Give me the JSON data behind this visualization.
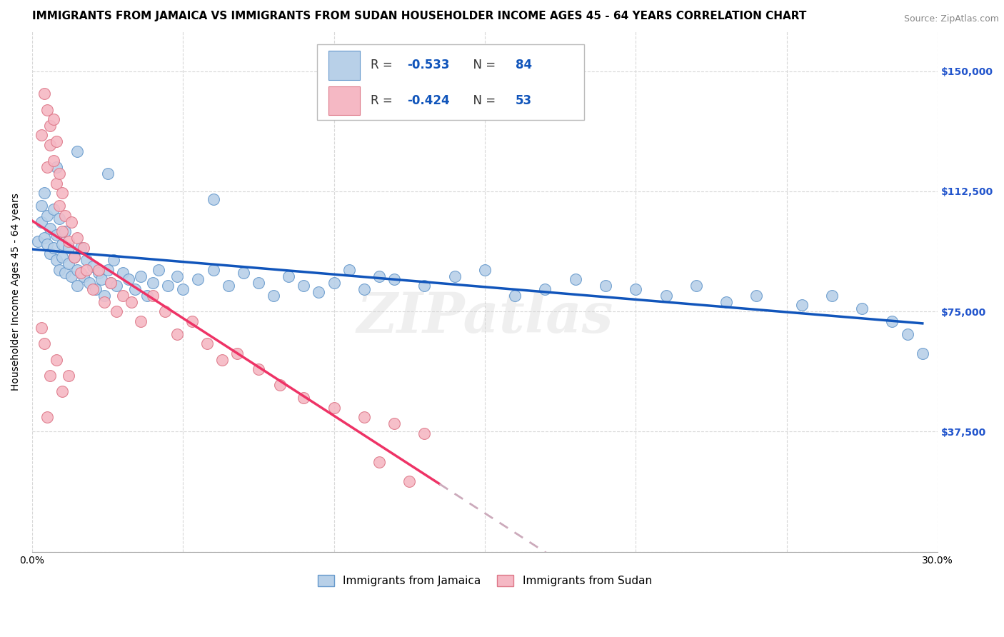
{
  "title": "IMMIGRANTS FROM JAMAICA VS IMMIGRANTS FROM SUDAN HOUSEHOLDER INCOME AGES 45 - 64 YEARS CORRELATION CHART",
  "source": "Source: ZipAtlas.com",
  "ylabel": "Householder Income Ages 45 - 64 years",
  "xlim": [
    0.0,
    0.3
  ],
  "ylim": [
    0,
    162500
  ],
  "yticks": [
    0,
    37500,
    75000,
    112500,
    150000
  ],
  "ytick_labels": [
    "",
    "$37,500",
    "$75,000",
    "$112,500",
    "$150,000"
  ],
  "xtick_positions": [
    0.0,
    0.05,
    0.1,
    0.15,
    0.2,
    0.25,
    0.3
  ],
  "xtick_labels": [
    "0.0%",
    "",
    "",
    "",
    "",
    "",
    "30.0%"
  ],
  "background_color": "#ffffff",
  "grid_color": "#d8d8d8",
  "jamaica_fill": "#b8d0e8",
  "jamaica_edge": "#6699cc",
  "sudan_fill": "#f5b8c4",
  "sudan_edge": "#dd7788",
  "trend_jamaica_color": "#1155bb",
  "trend_sudan_solid_color": "#ee3366",
  "trend_sudan_dash_color": "#ccaabb",
  "watermark": "ZIPatlas",
  "jamaica_x": [
    0.002,
    0.003,
    0.003,
    0.004,
    0.004,
    0.005,
    0.005,
    0.006,
    0.006,
    0.007,
    0.007,
    0.008,
    0.008,
    0.009,
    0.009,
    0.01,
    0.01,
    0.011,
    0.011,
    0.012,
    0.012,
    0.013,
    0.014,
    0.015,
    0.015,
    0.016,
    0.017,
    0.018,
    0.019,
    0.02,
    0.021,
    0.022,
    0.023,
    0.024,
    0.025,
    0.026,
    0.027,
    0.028,
    0.03,
    0.032,
    0.034,
    0.036,
    0.038,
    0.04,
    0.042,
    0.045,
    0.048,
    0.05,
    0.055,
    0.06,
    0.065,
    0.07,
    0.075,
    0.08,
    0.085,
    0.09,
    0.095,
    0.1,
    0.105,
    0.11,
    0.115,
    0.12,
    0.13,
    0.14,
    0.15,
    0.16,
    0.17,
    0.18,
    0.19,
    0.2,
    0.21,
    0.22,
    0.23,
    0.24,
    0.255,
    0.265,
    0.275,
    0.285,
    0.29,
    0.295,
    0.008,
    0.015,
    0.025,
    0.06
  ],
  "jamaica_y": [
    97000,
    108000,
    103000,
    112000,
    98000,
    105000,
    96000,
    101000,
    93000,
    107000,
    95000,
    99000,
    91000,
    104000,
    88000,
    96000,
    92000,
    100000,
    87000,
    95000,
    90000,
    86000,
    92000,
    88000,
    83000,
    95000,
    86000,
    91000,
    84000,
    89000,
    82000,
    87000,
    85000,
    80000,
    88000,
    84000,
    91000,
    83000,
    87000,
    85000,
    82000,
    86000,
    80000,
    84000,
    88000,
    83000,
    86000,
    82000,
    85000,
    88000,
    83000,
    87000,
    84000,
    80000,
    86000,
    83000,
    81000,
    84000,
    88000,
    82000,
    86000,
    85000,
    83000,
    86000,
    88000,
    80000,
    82000,
    85000,
    83000,
    82000,
    80000,
    83000,
    78000,
    80000,
    77000,
    80000,
    76000,
    72000,
    68000,
    62000,
    120000,
    125000,
    118000,
    110000
  ],
  "sudan_x": [
    0.003,
    0.004,
    0.005,
    0.005,
    0.006,
    0.006,
    0.007,
    0.007,
    0.008,
    0.008,
    0.009,
    0.009,
    0.01,
    0.01,
    0.011,
    0.012,
    0.013,
    0.014,
    0.015,
    0.016,
    0.017,
    0.018,
    0.02,
    0.022,
    0.024,
    0.026,
    0.028,
    0.03,
    0.033,
    0.036,
    0.04,
    0.044,
    0.048,
    0.053,
    0.058,
    0.063,
    0.068,
    0.075,
    0.082,
    0.09,
    0.1,
    0.11,
    0.12,
    0.13,
    0.003,
    0.004,
    0.006,
    0.008,
    0.01,
    0.012,
    0.115,
    0.125,
    0.005
  ],
  "sudan_y": [
    130000,
    143000,
    120000,
    138000,
    127000,
    133000,
    122000,
    135000,
    115000,
    128000,
    108000,
    118000,
    100000,
    112000,
    105000,
    97000,
    103000,
    92000,
    98000,
    87000,
    95000,
    88000,
    82000,
    88000,
    78000,
    84000,
    75000,
    80000,
    78000,
    72000,
    80000,
    75000,
    68000,
    72000,
    65000,
    60000,
    62000,
    57000,
    52000,
    48000,
    45000,
    42000,
    40000,
    37000,
    70000,
    65000,
    55000,
    60000,
    50000,
    55000,
    28000,
    22000,
    42000
  ],
  "title_fontsize": 11,
  "label_fontsize": 10,
  "tick_fontsize": 10
}
